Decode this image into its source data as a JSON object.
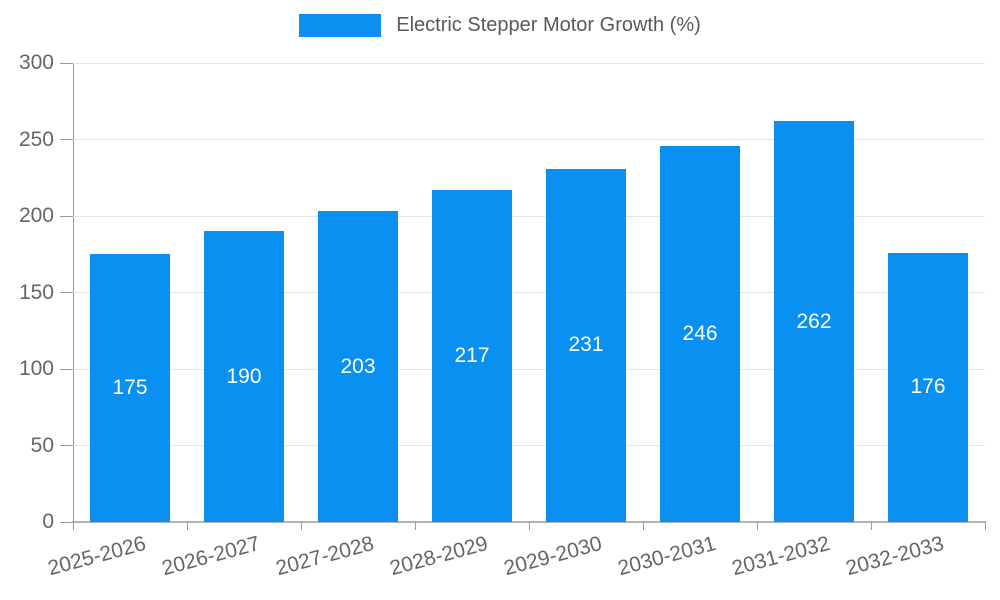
{
  "chart": {
    "legend": {
      "position": "top-center",
      "items": [
        {
          "label": "Electric Stepper Motor Growth (%)",
          "swatch_color": "#0a90f0"
        }
      ]
    }
  },
  "chart_data": {
    "type": "bar",
    "title": "Electric Stepper Motor Growth (%)",
    "categories": [
      "2025-2026",
      "2026-2027",
      "2027-2028",
      "2028-2029",
      "2029-2030",
      "2030-2031",
      "2031-2032",
      "2032-2033"
    ],
    "values": [
      175,
      190,
      203,
      217,
      231,
      246,
      262,
      176
    ],
    "xlabel": "",
    "ylabel": "",
    "ylim": [
      0,
      300
    ],
    "yticks": [
      0,
      50,
      100,
      150,
      200,
      250,
      300
    ],
    "grid": true,
    "legend_position": "top",
    "x_label_rotation_deg": -15,
    "value_label_position": "inside-center"
  },
  "colors": {
    "bar": "#0a90f0",
    "axis": "#999999",
    "grid": "#e6e6e6",
    "text": "#666666",
    "valueText": "#ffffff",
    "background": "#ffffff"
  }
}
